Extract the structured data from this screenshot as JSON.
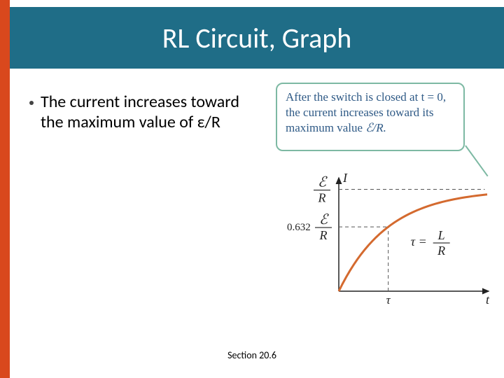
{
  "colors": {
    "accent": "#d9481d",
    "title_band": "#1f6d87",
    "callout_border": "#7db9a3",
    "callout_text": "#2f5a86",
    "axis": "#222222",
    "curve": "#d46a2f",
    "dashed": "#555555",
    "bullet_dot": "#444444",
    "background": "#ffffff"
  },
  "title": "RL Circuit, Graph",
  "bullet": {
    "text": "The current increases toward the maximum value of ε/R"
  },
  "callout": {
    "line1_prefix": "After the switch is closed",
    "line1_t": "at t = 0,",
    "line1_suffix": " the current",
    "line2": "increases toward its",
    "line3_prefix": "maximum value ",
    "line3_sym": "ℰ/R."
  },
  "chart": {
    "axis_label_y": "I",
    "axis_label_x": "t",
    "asymptote_label_top": "ℰ",
    "asymptote_label_bottom": "R",
    "mid_label_coef": "0.632",
    "mid_label_top": "ℰ",
    "mid_label_bottom": "R",
    "tau_label": "τ",
    "tau_eq": "τ = L/R",
    "xlim": [
      0,
      3.0
    ],
    "ylim": [
      0,
      1.1
    ],
    "tau_x": 1.0,
    "asymptote_y": 1.0,
    "mid_y": 0.632,
    "curve_samples": 40
  },
  "footer": "Section 20.6",
  "typography": {
    "title_fontsize": 40,
    "bullet_fontsize": 24,
    "callout_fontsize": 17,
    "axis_label_fontsize": 18,
    "footer_fontsize": 14
  }
}
